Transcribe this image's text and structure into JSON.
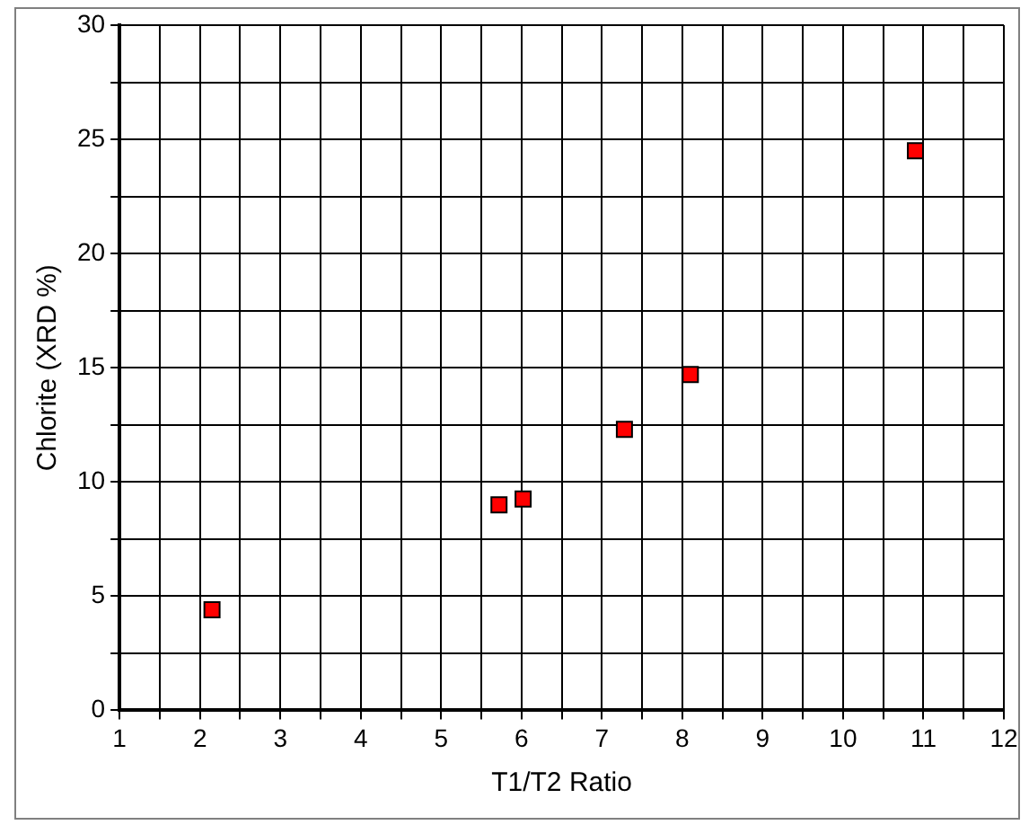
{
  "chart_data": {
    "type": "scatter",
    "xlabel": "T1/T2 Ratio",
    "ylabel": "Chlorite (XRD %)",
    "x": [
      2.15,
      5.72,
      6.02,
      7.28,
      8.1,
      10.9
    ],
    "series": [
      {
        "color": "#ff0000",
        "values": [
          4.4,
          9.0,
          9.25,
          12.3,
          14.7,
          24.5
        ]
      }
    ],
    "xlim": [
      1,
      12
    ],
    "xticks": [
      1,
      {
        "value": 1.5,
        "label": null
      },
      2,
      {
        "value": 2.5,
        "label": null
      },
      3,
      {
        "value": 3.5,
        "label": null
      },
      4,
      {
        "value": 4.5,
        "label": null
      },
      5,
      {
        "value": 5.5,
        "label": null
      },
      6,
      {
        "value": 6.5,
        "label": null
      },
      7,
      {
        "value": 7.5,
        "label": null
      },
      8,
      {
        "value": 8.5,
        "label": null
      },
      9,
      {
        "value": 9.5,
        "label": null
      },
      10,
      {
        "value": 10.5,
        "label": null
      },
      11,
      {
        "value": 11.5,
        "label": null
      },
      12
    ],
    "ylim": [
      0,
      30
    ],
    "yticks": [
      0,
      {
        "value": 2.5,
        "label": null
      },
      5,
      {
        "value": 7.5,
        "label": null
      },
      10,
      {
        "value": 12.5,
        "label": null
      },
      15,
      {
        "value": 17.5,
        "label": null
      },
      20,
      {
        "value": 22.5,
        "label": null
      },
      25,
      {
        "value": 27.5,
        "label": null
      },
      30
    ],
    "grid": true,
    "marker": "square",
    "legend": false
  }
}
